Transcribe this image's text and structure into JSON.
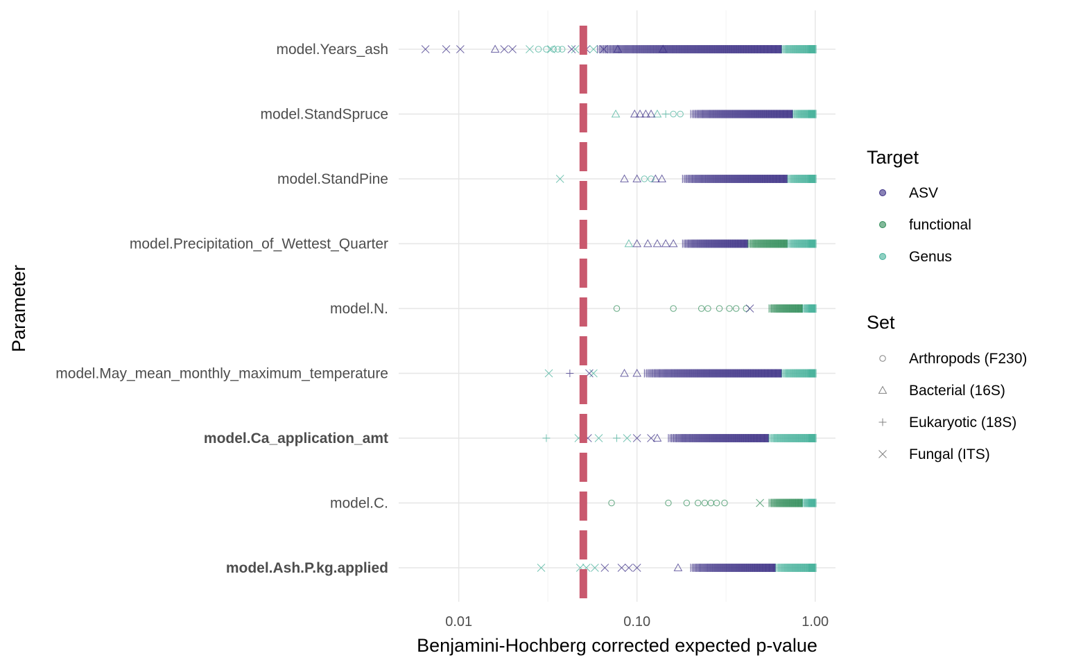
{
  "chart_data": {
    "type": "scatter",
    "xlabel": "Benjamini-Hochberg corrected expected p-value",
    "ylabel": "Parameter",
    "x_scale": "log10",
    "xlim": [
      0.0046,
      1.3
    ],
    "x_ticks": [
      {
        "value": 0.01,
        "label": "0.01"
      },
      {
        "value": 0.1,
        "label": "0.10"
      },
      {
        "value": 1.0,
        "label": "1.00"
      }
    ],
    "grid": true,
    "threshold_line": {
      "x": 0.05,
      "color": "#c9596e",
      "style": "dashed"
    },
    "parameters": [
      {
        "name": "model.Years_ash",
        "bold": false
      },
      {
        "name": "model.StandSpruce",
        "bold": false
      },
      {
        "name": "model.StandPine",
        "bold": false
      },
      {
        "name": "model.Precipitation_of_Wettest_Quarter",
        "bold": false
      },
      {
        "name": "model.N.",
        "bold": false
      },
      {
        "name": "model.May_mean_monthly_maximum_temperature",
        "bold": false
      },
      {
        "name": "model.Ca_application_amt",
        "bold": true
      },
      {
        "name": "model.C.",
        "bold": false
      },
      {
        "name": "model.Ash.P.kg.applied",
        "bold": true
      }
    ],
    "legend_position": "right",
    "legend_target": {
      "title": "Target",
      "items": [
        {
          "label": "ASV",
          "color": "#3b2f85"
        },
        {
          "label": "functional",
          "color": "#2e8b57"
        },
        {
          "label": "Genus",
          "color": "#45b09a"
        }
      ]
    },
    "legend_set": {
      "title": "Set",
      "items": [
        {
          "label": "Arthropods (F230)",
          "shape": "circle"
        },
        {
          "label": "Bacterial (16S)",
          "shape": "triangle"
        },
        {
          "label": "Eukaryotic (18S)",
          "shape": "plus"
        },
        {
          "label": "Fungal (ITS)",
          "shape": "x"
        }
      ]
    },
    "series": [
      {
        "parameter": "model.Years_ash",
        "target": "ASV",
        "set": "Fungal (ITS)",
        "x": [
          0.0065,
          0.0085,
          0.0102,
          0.018,
          0.02,
          0.043,
          0.052,
          0.065
        ]
      },
      {
        "parameter": "model.Years_ash",
        "target": "ASV",
        "set": "Bacterial (16S)",
        "x": [
          0.016,
          0.078,
          0.14
        ]
      },
      {
        "parameter": "model.Years_ash",
        "target": "Genus",
        "set": "Arthropods (F230)",
        "x": [
          0.028,
          0.031,
          0.034,
          0.036,
          0.038
        ]
      },
      {
        "parameter": "model.Years_ash",
        "target": "Genus",
        "set": "Fungal (ITS)",
        "x": [
          0.025,
          0.033,
          0.045,
          0.057
        ]
      },
      {
        "parameter": "model.StandSpruce",
        "target": "Genus",
        "set": "Bacterial (16S)",
        "x": [
          0.076,
          0.13
        ]
      },
      {
        "parameter": "model.StandSpruce",
        "target": "ASV",
        "set": "Bacterial (16S)",
        "x": [
          0.097,
          0.104,
          0.112,
          0.12
        ]
      },
      {
        "parameter": "model.StandSpruce",
        "target": "Genus",
        "set": "Eukaryotic (18S)",
        "x": [
          0.145
        ]
      },
      {
        "parameter": "model.StandSpruce",
        "target": "Genus",
        "set": "Arthropods (F230)",
        "x": [
          0.16,
          0.175
        ]
      },
      {
        "parameter": "model.StandPine",
        "target": "Genus",
        "set": "Fungal (ITS)",
        "x": [
          0.037
        ]
      },
      {
        "parameter": "model.StandPine",
        "target": "ASV",
        "set": "Bacterial (16S)",
        "x": [
          0.085,
          0.1,
          0.127,
          0.138
        ]
      },
      {
        "parameter": "model.StandPine",
        "target": "Genus",
        "set": "Arthropods (F230)",
        "x": [
          0.11,
          0.12
        ]
      },
      {
        "parameter": "model.Precipitation_of_Wettest_Quarter",
        "target": "Genus",
        "set": "Bacterial (16S)",
        "x": [
          0.09
        ]
      },
      {
        "parameter": "model.Precipitation_of_Wettest_Quarter",
        "target": "ASV",
        "set": "Bacterial (16S)",
        "x": [
          0.1,
          0.115,
          0.13,
          0.145,
          0.16
        ]
      },
      {
        "parameter": "model.N.",
        "target": "functional",
        "set": "Arthropods (F230)",
        "x": [
          0.077,
          0.16,
          0.23,
          0.25,
          0.29,
          0.33,
          0.36,
          0.41
        ]
      },
      {
        "parameter": "model.N.",
        "target": "ASV",
        "set": "Fungal (ITS)",
        "x": [
          0.43
        ]
      },
      {
        "parameter": "model.May_mean_monthly_maximum_temperature",
        "target": "Genus",
        "set": "Fungal (ITS)",
        "x": [
          0.032,
          0.057
        ]
      },
      {
        "parameter": "model.May_mean_monthly_maximum_temperature",
        "target": "ASV",
        "set": "Eukaryotic (18S)",
        "x": [
          0.042
        ]
      },
      {
        "parameter": "model.May_mean_monthly_maximum_temperature",
        "target": "ASV",
        "set": "Fungal (ITS)",
        "x": [
          0.054
        ]
      },
      {
        "parameter": "model.May_mean_monthly_maximum_temperature",
        "target": "ASV",
        "set": "Bacterial (16S)",
        "x": [
          0.085,
          0.1
        ]
      },
      {
        "parameter": "model.Ca_application_amt",
        "target": "Genus",
        "set": "Eukaryotic (18S)",
        "x": [
          0.031,
          0.077
        ]
      },
      {
        "parameter": "model.Ca_application_amt",
        "target": "Genus",
        "set": "Fungal (ITS)",
        "x": [
          0.047,
          0.061,
          0.088
        ]
      },
      {
        "parameter": "model.Ca_application_amt",
        "target": "ASV",
        "set": "Fungal (ITS)",
        "x": [
          0.053,
          0.1,
          0.12
        ]
      },
      {
        "parameter": "model.Ca_application_amt",
        "target": "ASV",
        "set": "Bacterial (16S)",
        "x": [
          0.13
        ]
      },
      {
        "parameter": "model.C.",
        "target": "functional",
        "set": "Arthropods (F230)",
        "x": [
          0.072,
          0.15,
          0.19,
          0.22,
          0.24,
          0.26,
          0.28,
          0.31
        ]
      },
      {
        "parameter": "model.C.",
        "target": "functional",
        "set": "Fungal (ITS)",
        "x": [
          0.49
        ]
      },
      {
        "parameter": "model.Ash.P.kg.applied",
        "target": "Genus",
        "set": "Fungal (ITS)",
        "x": [
          0.029,
          0.048,
          0.052,
          0.058
        ]
      },
      {
        "parameter": "model.Ash.P.kg.applied",
        "target": "ASV",
        "set": "Fungal (ITS)",
        "x": [
          0.066,
          0.082,
          0.09,
          0.1
        ]
      },
      {
        "parameter": "model.Ash.P.kg.applied",
        "target": "ASV",
        "set": "Bacterial (16S)",
        "x": [
          0.17
        ]
      }
    ],
    "dense_bands": [
      {
        "parameter": "model.Years_ash",
        "ranges": [
          {
            "target": "ASV",
            "from": 0.06,
            "to": 0.65
          },
          {
            "target": "Genus",
            "from": 0.65,
            "to": 1.0
          }
        ]
      },
      {
        "parameter": "model.StandSpruce",
        "ranges": [
          {
            "target": "ASV",
            "from": 0.2,
            "to": 0.75
          },
          {
            "target": "Genus",
            "from": 0.75,
            "to": 1.0
          }
        ]
      },
      {
        "parameter": "model.StandPine",
        "ranges": [
          {
            "target": "ASV",
            "from": 0.18,
            "to": 0.7
          },
          {
            "target": "Genus",
            "from": 0.7,
            "to": 1.0
          }
        ]
      },
      {
        "parameter": "model.Precipitation_of_Wettest_Quarter",
        "ranges": [
          {
            "target": "ASV",
            "from": 0.18,
            "to": 0.42
          },
          {
            "target": "functional",
            "from": 0.42,
            "to": 0.7
          },
          {
            "target": "Genus",
            "from": 0.7,
            "to": 1.0
          }
        ]
      },
      {
        "parameter": "model.N.",
        "ranges": [
          {
            "target": "functional",
            "from": 0.55,
            "to": 0.85
          },
          {
            "target": "Genus",
            "from": 0.85,
            "to": 1.0
          }
        ]
      },
      {
        "parameter": "model.May_mean_monthly_maximum_temperature",
        "ranges": [
          {
            "target": "ASV",
            "from": 0.11,
            "to": 0.65
          },
          {
            "target": "Genus",
            "from": 0.65,
            "to": 1.0
          }
        ]
      },
      {
        "parameter": "model.Ca_application_amt",
        "ranges": [
          {
            "target": "ASV",
            "from": 0.15,
            "to": 0.55
          },
          {
            "target": "Genus",
            "from": 0.55,
            "to": 1.0
          }
        ]
      },
      {
        "parameter": "model.C.",
        "ranges": [
          {
            "target": "functional",
            "from": 0.55,
            "to": 0.85
          },
          {
            "target": "Genus",
            "from": 0.85,
            "to": 1.0
          }
        ]
      },
      {
        "parameter": "model.Ash.P.kg.applied",
        "ranges": [
          {
            "target": "ASV",
            "from": 0.2,
            "to": 0.6
          },
          {
            "target": "Genus",
            "from": 0.6,
            "to": 1.0
          }
        ]
      }
    ]
  }
}
